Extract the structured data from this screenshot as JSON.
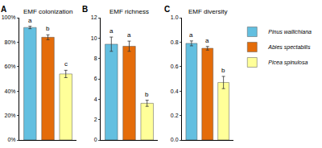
{
  "chart_data": [
    {
      "type": "bar",
      "title": "EMF colonization",
      "annotations": [
        "A"
      ],
      "categories": [
        "Pinus wallichiana",
        "Abies spectabilis",
        "Picea spinulosa"
      ],
      "values": [
        92,
        84,
        54
      ],
      "errors": [
        1,
        2,
        3
      ],
      "group_letters": [
        "a",
        "b",
        "c"
      ],
      "colors": [
        "#63bfe0",
        "#e46c0a",
        "#ffff99"
      ],
      "ylim": [
        0,
        100
      ],
      "yticks": [
        {
          "value": 0,
          "label": "0%"
        },
        {
          "value": 20,
          "label": "20%"
        },
        {
          "value": 40,
          "label": "40%"
        },
        {
          "value": 60,
          "label": "60%"
        },
        {
          "value": 80,
          "label": "80%"
        },
        {
          "value": 100,
          "label": "100%"
        }
      ],
      "tick_labels": "y",
      "grid": false,
      "legend": "right"
    },
    {
      "type": "bar",
      "title": "EMF richness",
      "annotations": [
        "B"
      ],
      "categories": [
        "Pinus wallichiana",
        "Abies spectabilis",
        "Picea spinulosa"
      ],
      "values": [
        9.4,
        9.2,
        3.6
      ],
      "errors": [
        0.7,
        0.5,
        0.3
      ],
      "group_letters": [
        "a",
        "a",
        "b"
      ],
      "colors": [
        "#63bfe0",
        "#e46c0a",
        "#ffff99"
      ],
      "ylim": [
        0,
        12
      ],
      "yticks": [
        0,
        2,
        4,
        6,
        8,
        10,
        12
      ],
      "tick_labels": "y",
      "grid": false
    },
    {
      "type": "bar",
      "title": "EMF diversity",
      "annotations": [
        "C"
      ],
      "categories": [
        "Pinus wallichiana",
        "Abies spectabilis",
        "Picea spinulosa"
      ],
      "values": [
        0.79,
        0.75,
        0.47
      ],
      "errors": [
        0.02,
        0.015,
        0.05
      ],
      "group_letters": [
        "a",
        "a",
        "b"
      ],
      "colors": [
        "#63bfe0",
        "#e46c0a",
        "#ffff99"
      ],
      "ylim": [
        0,
        1
      ],
      "yticks": [
        {
          "value": 0,
          "label": "0.0"
        },
        0.2,
        0.4,
        0.6,
        0.8,
        {
          "value": 1,
          "label": "1.0"
        }
      ],
      "tick_labels": "y",
      "grid": false
    }
  ]
}
